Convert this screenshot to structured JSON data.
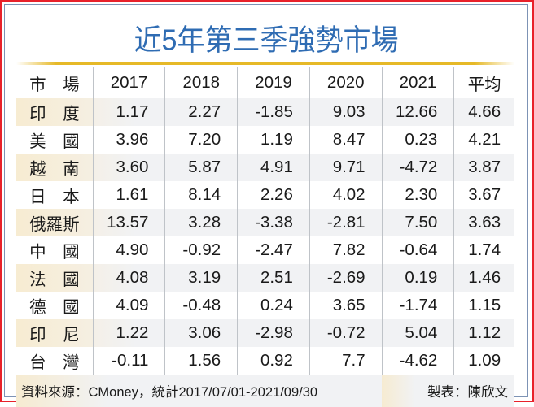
{
  "title": "近5年第三季強勢市場",
  "colors": {
    "title": "#2f6cb3",
    "rule": "#e6b928",
    "border_outer": "#e8212a",
    "border_inner": "#7d93b5",
    "row_alt": "#f1f2f4",
    "row_alt_lead": "#f7ecd2"
  },
  "table": {
    "headers": [
      "市　場",
      "2017",
      "2018",
      "2019",
      "2020",
      "2021",
      "平均"
    ],
    "rows": [
      {
        "market": "印　度",
        "v2017": "1.17",
        "v2018": "2.27",
        "v2019": "-1.85",
        "v2020": "9.03",
        "v2021": "12.66",
        "avg": "4.66"
      },
      {
        "market": "美　國",
        "v2017": "3.96",
        "v2018": "7.20",
        "v2019": "1.19",
        "v2020": "8.47",
        "v2021": "0.23",
        "avg": "4.21"
      },
      {
        "market": "越　南",
        "v2017": "3.60",
        "v2018": "5.87",
        "v2019": "4.91",
        "v2020": "9.71",
        "v2021": "-4.72",
        "avg": "3.87"
      },
      {
        "market": "日　本",
        "v2017": "1.61",
        "v2018": "8.14",
        "v2019": "2.26",
        "v2020": "4.02",
        "v2021": "2.30",
        "avg": "3.67"
      },
      {
        "market": "俄羅斯",
        "v2017": "13.57",
        "v2018": "3.28",
        "v2019": "-3.38",
        "v2020": "-2.81",
        "v2021": "7.50",
        "avg": "3.63"
      },
      {
        "market": "中　國",
        "v2017": "4.90",
        "v2018": "-0.92",
        "v2019": "-2.47",
        "v2020": "7.82",
        "v2021": "-0.64",
        "avg": "1.74"
      },
      {
        "market": "法　國",
        "v2017": "4.08",
        "v2018": "3.19",
        "v2019": "2.51",
        "v2020": "-2.69",
        "v2021": "0.19",
        "avg": "1.46"
      },
      {
        "market": "德　國",
        "v2017": "4.09",
        "v2018": "-0.48",
        "v2019": "0.24",
        "v2020": "3.65",
        "v2021": "-1.74",
        "avg": "1.15"
      },
      {
        "market": "印　尼",
        "v2017": "1.22",
        "v2018": "3.06",
        "v2019": "-2.98",
        "v2020": "-0.72",
        "v2021": "5.04",
        "avg": "1.12"
      },
      {
        "market": "台　灣",
        "v2017": "-0.11",
        "v2018": "1.56",
        "v2019": "0.92",
        "v2020": "7.7",
        "v2021": "-4.62",
        "avg": "1.09"
      }
    ]
  },
  "footer": {
    "source": "資料來源：CMoney，統計2017/07/01-2021/09/30",
    "maker": "製表：陳欣文"
  }
}
